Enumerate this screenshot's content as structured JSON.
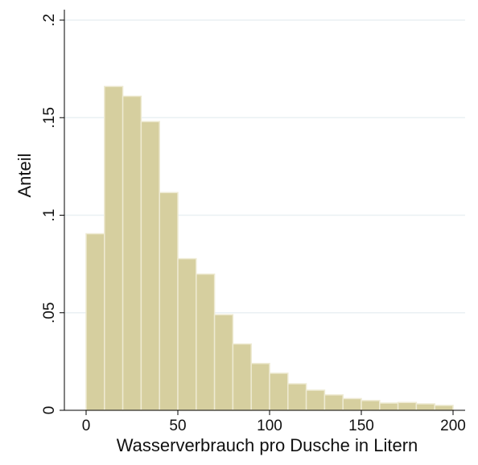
{
  "chart_data": {
    "type": "histogram",
    "xlabel": "Wasserverbrauch pro Dusche in Litern",
    "ylabel": "Anteil",
    "bins": [
      0,
      10,
      20,
      30,
      40,
      50,
      60,
      70,
      80,
      90,
      100,
      110,
      120,
      130,
      140,
      150,
      160,
      170,
      180,
      190,
      200
    ],
    "values": [
      0.0905,
      0.166,
      0.161,
      0.148,
      0.1116,
      0.0777,
      0.0698,
      0.049,
      0.034,
      0.024,
      0.019,
      0.0136,
      0.0103,
      0.0079,
      0.006,
      0.005,
      0.0037,
      0.004,
      0.0033,
      0.0025
    ],
    "color": "#d6cf9f",
    "xlim": [
      0,
      200
    ],
    "xticks": [
      0,
      50,
      100,
      150,
      200
    ],
    "ylim": [
      0,
      0.2
    ],
    "yticks": [
      0,
      {
        "value": 0.05,
        "label": ".05"
      },
      {
        "value": 0.1,
        "label": ".1"
      },
      {
        "value": 0.15,
        "label": ".15"
      },
      {
        "value": 0.2,
        "label": ".2"
      }
    ],
    "grid": true
  }
}
